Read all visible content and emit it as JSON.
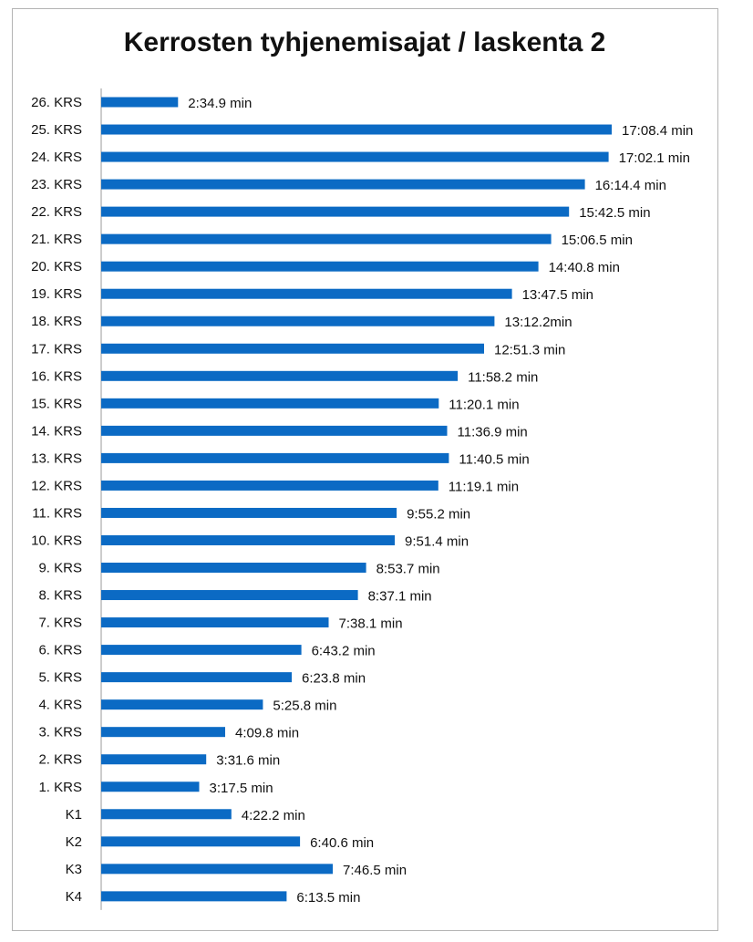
{
  "chart_data": {
    "type": "bar",
    "orientation": "horizontal",
    "title": "Kerrosten tyhjenemisajat / laskenta 2",
    "xlabel": "",
    "ylabel": "",
    "grid": false,
    "xlim": [
      0,
      1028.4
    ],
    "color": "#0b6ac4",
    "categories": [
      "26. KRS",
      "25. KRS",
      "24. KRS",
      "23. KRS",
      "22. KRS",
      "21. KRS",
      "20. KRS",
      "19. KRS",
      "18. KRS",
      "17. KRS",
      "16. KRS",
      "15. KRS",
      "14. KRS",
      "13. KRS",
      "12. KRS",
      "11. KRS",
      "10. KRS",
      "9. KRS",
      "8. KRS",
      "7. KRS",
      "6. KRS",
      "5. KRS",
      "4. KRS",
      "3. KRS",
      "2. KRS",
      "1. KRS",
      "K1",
      "K2",
      "K3",
      "K4"
    ],
    "values": [
      154.9,
      1028.4,
      1022.1,
      974.4,
      942.5,
      906.5,
      880.8,
      827.5,
      792.2,
      771.3,
      718.2,
      680.1,
      696.9,
      700.5,
      679.1,
      595.2,
      591.4,
      533.7,
      517.1,
      458.1,
      403.2,
      383.8,
      325.8,
      249.8,
      211.6,
      197.5,
      262.2,
      400.6,
      466.5,
      373.5
    ],
    "value_unit": "seconds",
    "labels": [
      "2:34.9 min",
      "17:08.4 min",
      "17:02.1 min",
      "16:14.4 min",
      "15:42.5 min",
      "15:06.5 min",
      "14:40.8 min",
      "13:47.5 min",
      "13:12.2min",
      "12:51.3 min",
      "11:58.2 min",
      "11:20.1 min",
      "11:36.9 min",
      "11:40.5 min",
      "11:19.1 min",
      "9:55.2 min",
      "9:51.4 min",
      "8:53.7 min",
      "8:37.1 min",
      "7:38.1 min",
      "6:43.2 min",
      "6:23.8 min",
      "5:25.8 min",
      "4:09.8 min",
      "3:31.6 min",
      "3:17.5 min",
      "4:22.2 min",
      "6:40.6 min",
      "7:46.5 min",
      "6:13.5 min"
    ]
  }
}
